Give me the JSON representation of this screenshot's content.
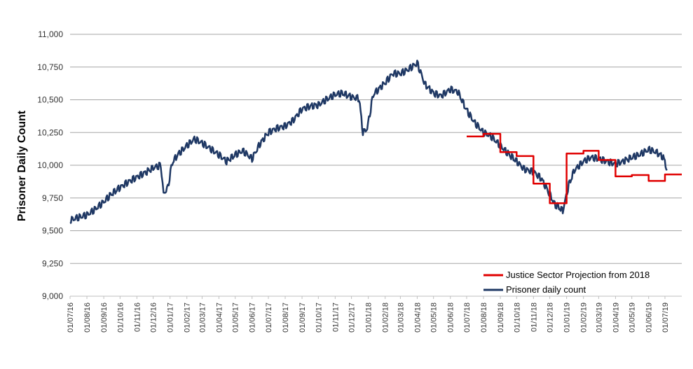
{
  "chart_data": {
    "type": "line",
    "title": "",
    "xlabel": "",
    "ylabel": "Prisoner Daily Count",
    "ylim": [
      9000,
      11000
    ],
    "yticks": [
      9000,
      9250,
      9500,
      9750,
      10000,
      10250,
      10500,
      10750,
      11000
    ],
    "ytick_labels": [
      "9,000",
      "9,250",
      "9,500",
      "9,750",
      "10,000",
      "10,250",
      "10,500",
      "10,750",
      "11,000"
    ],
    "xlim": [
      "2016-07-01",
      "2019-08-01"
    ],
    "xtick_labels": [
      "01/07/16",
      "01/08/16",
      "01/09/16",
      "01/10/16",
      "01/11/16",
      "01/12/16",
      "01/01/17",
      "01/02/17",
      "01/03/17",
      "01/04/17",
      "01/05/17",
      "01/06/17",
      "01/07/17",
      "01/08/17",
      "01/09/17",
      "01/10/17",
      "01/11/17",
      "01/12/17",
      "01/01/18",
      "01/02/18",
      "01/03/18",
      "01/04/18",
      "01/05/18",
      "01/06/18",
      "01/07/18",
      "01/08/18",
      "01/09/18",
      "01/10/18",
      "01/11/18",
      "01/12/18",
      "01/01/19",
      "01/02/19",
      "01/03/19",
      "01/04/19",
      "01/05/19",
      "01/06/19",
      "01/07/19"
    ],
    "grid": "horizontal",
    "legend_position": "bottom-right",
    "series": [
      {
        "name": "Justice Sector Projection from 2018",
        "color": "#e00000",
        "step": true,
        "x": [
          "2018-07-01",
          "2018-08-01",
          "2018-09-01",
          "2018-10-01",
          "2018-11-01",
          "2018-12-01",
          "2019-01-01",
          "2019-02-01",
          "2019-03-01",
          "2019-04-01",
          "2019-05-01",
          "2019-06-01",
          "2019-07-01",
          "2019-08-01"
        ],
        "y": [
          10220,
          10240,
          10100,
          10070,
          9860,
          9710,
          10090,
          10110,
          10040,
          9915,
          9925,
          9880,
          9930,
          9930
        ]
      },
      {
        "name": "Prisoner daily count",
        "color": "#1f3864",
        "step": false,
        "x": [
          "2016-07-01",
          "2016-07-15",
          "2016-08-01",
          "2016-08-15",
          "2016-09-01",
          "2016-09-15",
          "2016-10-01",
          "2016-10-15",
          "2016-11-01",
          "2016-11-15",
          "2016-12-01",
          "2016-12-15",
          "2016-12-20",
          "2016-12-28",
          "2017-01-05",
          "2017-01-15",
          "2017-02-01",
          "2017-02-15",
          "2017-03-01",
          "2017-03-15",
          "2017-04-01",
          "2017-04-15",
          "2017-05-01",
          "2017-05-15",
          "2017-06-01",
          "2017-06-15",
          "2017-07-01",
          "2017-07-15",
          "2017-08-01",
          "2017-08-15",
          "2017-09-01",
          "2017-09-15",
          "2017-10-01",
          "2017-10-15",
          "2017-11-01",
          "2017-11-15",
          "2017-12-01",
          "2017-12-15",
          "2017-12-22",
          "2017-12-30",
          "2018-01-10",
          "2018-02-01",
          "2018-02-15",
          "2018-03-01",
          "2018-03-15",
          "2018-04-01",
          "2018-04-15",
          "2018-05-01",
          "2018-05-15",
          "2018-06-01",
          "2018-06-15",
          "2018-07-01",
          "2018-07-15",
          "2018-08-01",
          "2018-08-15",
          "2018-09-01",
          "2018-09-15",
          "2018-10-01",
          "2018-10-15",
          "2018-11-01",
          "2018-11-15",
          "2018-12-01",
          "2018-12-10",
          "2018-12-18",
          "2018-12-25",
          "2019-01-05",
          "2019-01-15",
          "2019-02-01",
          "2019-02-15",
          "2019-03-01",
          "2019-03-15",
          "2019-04-01",
          "2019-04-15",
          "2019-05-01",
          "2019-05-15",
          "2019-06-01",
          "2019-06-15",
          "2019-06-28",
          "2019-07-05"
        ],
        "y": [
          9580,
          9600,
          9620,
          9660,
          9720,
          9780,
          9830,
          9870,
          9910,
          9940,
          9980,
          10000,
          9780,
          9830,
          10020,
          10080,
          10150,
          10200,
          10170,
          10130,
          10080,
          10030,
          10080,
          10110,
          10050,
          10160,
          10250,
          10280,
          10300,
          10340,
          10430,
          10450,
          10460,
          10500,
          10540,
          10550,
          10520,
          10510,
          10250,
          10280,
          10540,
          10630,
          10700,
          10700,
          10730,
          10780,
          10620,
          10550,
          10530,
          10580,
          10560,
          10420,
          10330,
          10250,
          10220,
          10150,
          10090,
          10030,
          9970,
          9950,
          9900,
          9780,
          9700,
          9680,
          9650,
          9850,
          9960,
          10030,
          10060,
          10050,
          10030,
          10010,
          10030,
          10060,
          10080,
          10120,
          10100,
          10060,
          9970
        ]
      }
    ]
  }
}
